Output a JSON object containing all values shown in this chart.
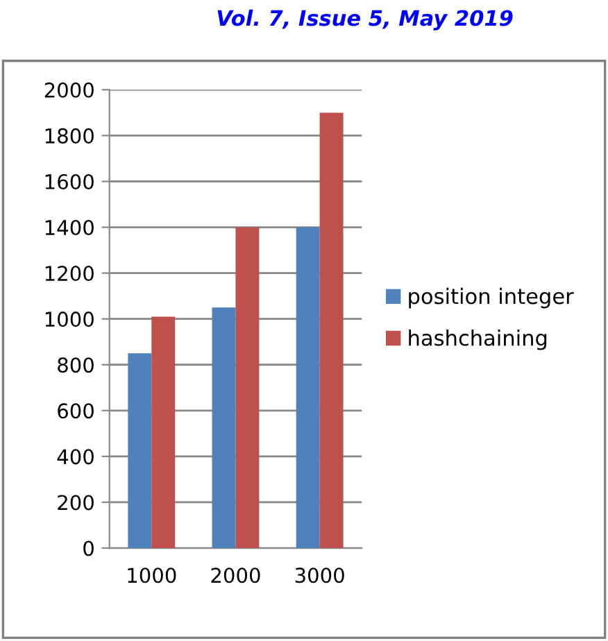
{
  "chart_data": {
    "type": "bar",
    "annotations": [
      "Vol. 7, Issue 5, May 2019"
    ],
    "categories": [
      "1000",
      "2000",
      "3000"
    ],
    "series": [
      {
        "name": "position integer",
        "color": "#4f81bd",
        "values": [
          850,
          1050,
          1400
        ]
      },
      {
        "name": "hashchaining",
        "color": "#c0504d",
        "values": [
          1010,
          1400,
          1900
        ]
      }
    ],
    "ylim": [
      0,
      2000
    ],
    "yticks": [
      0,
      200,
      400,
      600,
      800,
      1000,
      1200,
      1400,
      1600,
      1800,
      2000
    ],
    "grid": "y",
    "legend": "right"
  }
}
